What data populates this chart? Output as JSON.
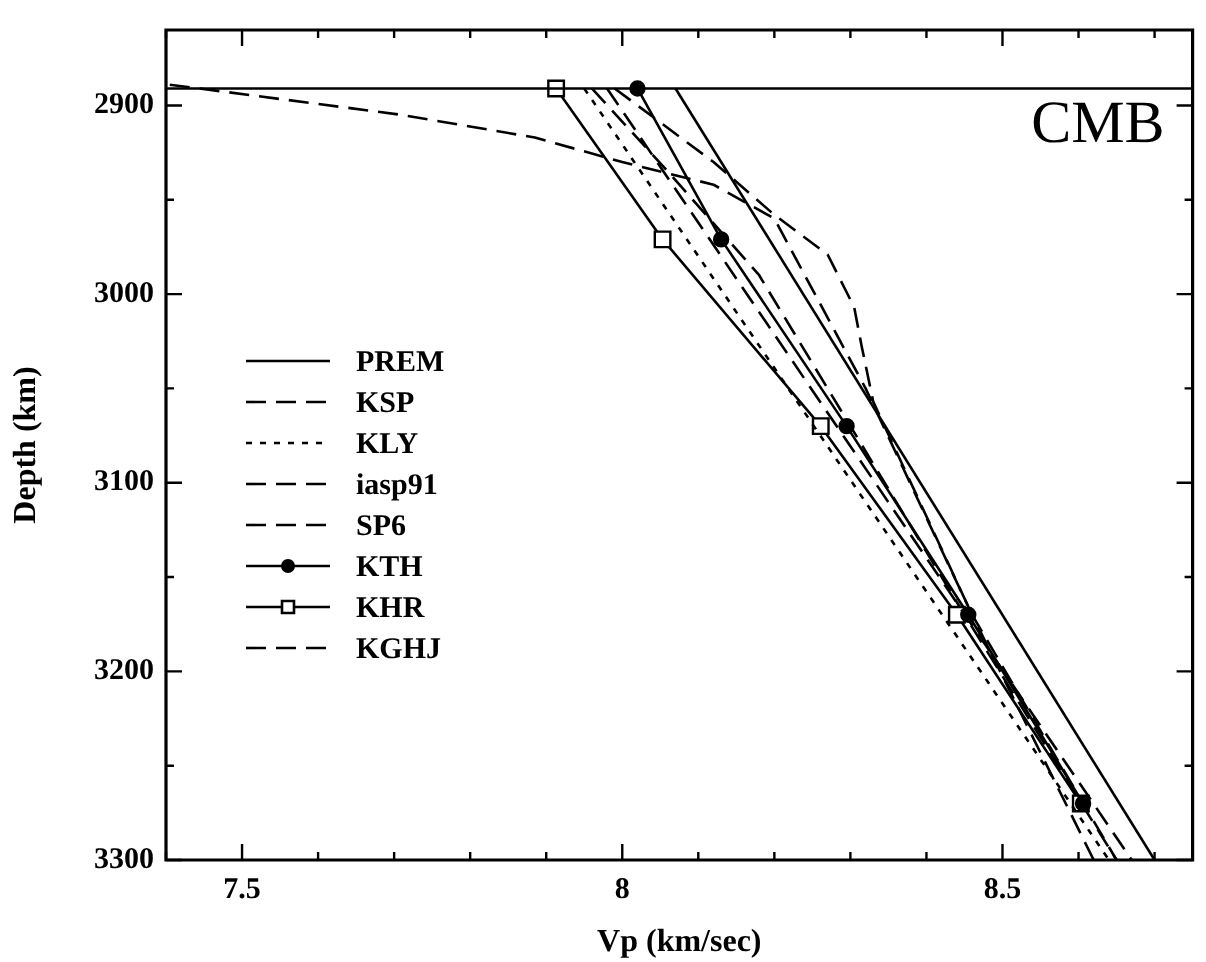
{
  "chart_data": {
    "type": "line",
    "xlabel": "Vp (km/sec)",
    "ylabel": "Depth (km)",
    "xlim": [
      7.4,
      8.75
    ],
    "ylim": [
      3300,
      2860
    ],
    "xticks": [
      {
        "value": 7.4,
        "label": null
      },
      7.5,
      {
        "value": 7.6,
        "label": null
      },
      {
        "value": 7.7,
        "label": null
      },
      {
        "value": 7.8,
        "label": null
      },
      {
        "value": 7.9,
        "label": null
      },
      8,
      {
        "value": 8.1,
        "label": null
      },
      {
        "value": 8.2,
        "label": null
      },
      {
        "value": 8.3,
        "label": null
      },
      {
        "value": 8.4,
        "label": null
      },
      8.5,
      {
        "value": 8.6,
        "label": null
      },
      {
        "value": 8.7,
        "label": null
      }
    ],
    "yticks": [
      2900,
      {
        "value": 2950,
        "label": null
      },
      3000,
      {
        "value": 3050,
        "label": null
      },
      3100,
      {
        "value": 3150,
        "label": null
      },
      3200,
      {
        "value": 3250,
        "label": null
      },
      3300
    ],
    "grid": false,
    "legend": "left",
    "marker": "none",
    "ref_lines": [
      {
        "axis": "y",
        "value": 2891,
        "label": "CMB",
        "color": "#000000"
      }
    ],
    "series": [
      {
        "name": "PREM",
        "color": "#000000",
        "line_style": "solid",
        "x": [
          8.07,
          8.7
        ],
        "values": [
          2891,
          3300
        ]
      },
      {
        "name": "KSP",
        "color": "#000000",
        "line_style": "dashed",
        "x": [
          7.405,
          7.52,
          7.71,
          7.885,
          8.0,
          8.12,
          8.2,
          8.32,
          8.46,
          8.62
        ],
        "values": [
          2889,
          2895,
          2905,
          2917,
          2930,
          2942,
          2960,
          3050,
          3170,
          3300
        ]
      },
      {
        "name": "KLY",
        "color": "#000000",
        "line_style": "dotted",
        "x": [
          7.95,
          8.64
        ],
        "values": [
          2891,
          3300
        ]
      },
      {
        "name": "iasp91",
        "color": "#000000",
        "line_style": "dashed",
        "x": [
          7.99,
          8.12,
          8.2,
          8.27,
          8.305,
          8.315,
          8.33,
          8.46,
          8.65
        ],
        "values": [
          2891,
          2930,
          2958,
          2979,
          3007,
          3028,
          3057,
          3170,
          3300
        ]
      },
      {
        "name": "SP6",
        "color": "#000000",
        "line_style": "dashed",
        "x": [
          7.98,
          8.67
        ],
        "values": [
          2891,
          3300
        ]
      },
      {
        "name": "KTH",
        "color": "#000000",
        "line_style": "solid",
        "marker": "circle",
        "x": [
          8.02,
          8.13,
          8.295,
          8.455,
          8.606
        ],
        "values": [
          2891,
          2971,
          3070,
          3170,
          3270
        ]
      },
      {
        "name": "KHR",
        "color": "#000000",
        "line_style": "solid",
        "marker": "square",
        "x": [
          7.913,
          8.053,
          8.261,
          8.44,
          8.603
        ],
        "values": [
          2891,
          2971,
          3070,
          3170,
          3270
        ]
      },
      {
        "name": "KGHJ",
        "color": "#000000",
        "line_style": "dashed",
        "x": [
          7.96,
          8.06,
          8.18,
          8.45,
          8.65
        ],
        "values": [
          2891,
          2935,
          2990,
          3170,
          3300
        ]
      }
    ]
  }
}
